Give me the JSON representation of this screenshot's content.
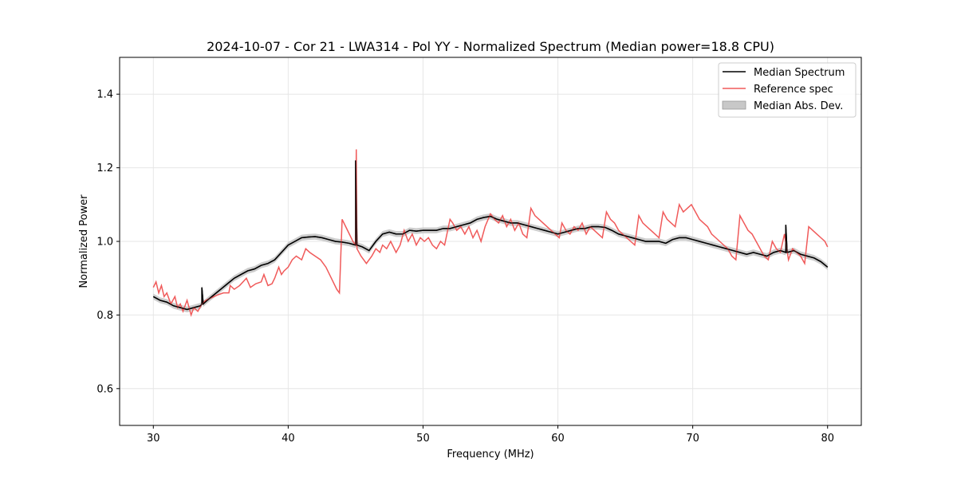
{
  "chart_data": {
    "type": "line",
    "title": "2024-10-07 - Cor 21 - LWA314 - Pol YY - Normalized Spectrum (Median power=18.8 CPU)",
    "xlabel": "Frequency (MHz)",
    "ylabel": "Normalized Power",
    "xlim": [
      27.5,
      82.5
    ],
    "ylim": [
      0.5,
      1.5
    ],
    "xticks": [
      30,
      40,
      50,
      60,
      70,
      80
    ],
    "yticks": [
      0.6,
      0.8,
      1.0,
      1.2,
      1.4
    ],
    "xtick_labels": [
      "30",
      "40",
      "50",
      "60",
      "70",
      "80"
    ],
    "ytick_labels": [
      "0.6",
      "0.8",
      "1.0",
      "1.2",
      "1.4"
    ],
    "grid": true,
    "legend_position": "top-right",
    "legend": [
      {
        "label": "Median Spectrum",
        "kind": "line",
        "color": "#000000"
      },
      {
        "label": "Reference spec",
        "kind": "line",
        "color": "#f05a5a"
      },
      {
        "label": "Median Abs. Dev.",
        "kind": "patch",
        "color": "#c8c8c8"
      }
    ],
    "series": [
      {
        "name": "Median Spectrum",
        "color": "#000000",
        "x": [
          30.0,
          30.5,
          31.0,
          31.5,
          32.0,
          32.5,
          33.0,
          33.5,
          33.6,
          33.6,
          33.7,
          34.0,
          34.5,
          35.0,
          35.5,
          36.0,
          36.5,
          37.0,
          37.5,
          38.0,
          38.5,
          39.0,
          39.5,
          40.0,
          40.5,
          41.0,
          41.5,
          42.0,
          42.5,
          43.0,
          43.5,
          44.0,
          44.5,
          45.0,
          45.0,
          45.1,
          45.5,
          46.0,
          46.5,
          47.0,
          47.5,
          48.0,
          48.5,
          49.0,
          49.5,
          50.0,
          50.5,
          51.0,
          51.5,
          52.0,
          52.5,
          53.0,
          53.5,
          54.0,
          54.5,
          55.0,
          55.5,
          56.0,
          56.5,
          57.0,
          57.5,
          58.0,
          58.5,
          59.0,
          59.5,
          60.0,
          60.5,
          61.0,
          61.5,
          62.0,
          62.5,
          63.0,
          63.5,
          64.0,
          64.5,
          65.0,
          65.5,
          66.0,
          66.5,
          67.0,
          67.5,
          68.0,
          68.5,
          69.0,
          69.5,
          70.0,
          70.5,
          71.0,
          71.5,
          72.0,
          72.5,
          73.0,
          73.5,
          74.0,
          74.5,
          75.0,
          75.5,
          76.0,
          76.5,
          76.9,
          76.9,
          77.0,
          77.5,
          78.0,
          78.5,
          79.0,
          79.5,
          80.0
        ],
        "y": [
          0.85,
          0.84,
          0.835,
          0.825,
          0.82,
          0.815,
          0.82,
          0.825,
          0.83,
          0.875,
          0.83,
          0.84,
          0.855,
          0.87,
          0.885,
          0.9,
          0.91,
          0.92,
          0.925,
          0.935,
          0.94,
          0.95,
          0.97,
          0.99,
          1.0,
          1.01,
          1.012,
          1.013,
          1.01,
          1.005,
          1.0,
          0.998,
          0.995,
          0.99,
          1.22,
          0.99,
          0.985,
          0.975,
          1.0,
          1.02,
          1.025,
          1.02,
          1.02,
          1.03,
          1.028,
          1.03,
          1.03,
          1.03,
          1.035,
          1.035,
          1.04,
          1.045,
          1.05,
          1.06,
          1.065,
          1.068,
          1.06,
          1.055,
          1.05,
          1.05,
          1.045,
          1.04,
          1.035,
          1.03,
          1.025,
          1.02,
          1.025,
          1.03,
          1.035,
          1.035,
          1.04,
          1.04,
          1.038,
          1.03,
          1.02,
          1.015,
          1.01,
          1.005,
          1.0,
          1.0,
          1.0,
          0.995,
          1.005,
          1.01,
          1.01,
          1.005,
          1.0,
          0.995,
          0.99,
          0.985,
          0.98,
          0.975,
          0.97,
          0.965,
          0.97,
          0.965,
          0.96,
          0.97,
          0.975,
          0.97,
          1.045,
          0.97,
          0.975,
          0.965,
          0.96,
          0.955,
          0.945,
          0.93
        ]
      },
      {
        "name": "Reference spec",
        "color": "#f05a5a",
        "x": [
          30.0,
          30.2,
          30.4,
          30.6,
          30.8,
          31.0,
          31.3,
          31.6,
          31.8,
          32.0,
          32.2,
          32.5,
          32.8,
          33.0,
          33.3,
          33.6,
          33.9,
          34.2,
          34.5,
          34.8,
          35.2,
          35.6,
          35.7,
          36.0,
          36.4,
          36.9,
          37.2,
          37.6,
          38.0,
          38.2,
          38.5,
          38.8,
          39.0,
          39.3,
          39.5,
          39.7,
          40.0,
          40.3,
          40.6,
          41.0,
          41.3,
          41.6,
          42.0,
          42.4,
          42.8,
          43.2,
          43.6,
          43.8,
          44.0,
          44.4,
          44.8,
          45.0,
          45.05,
          45.1,
          45.4,
          45.8,
          46.2,
          46.5,
          46.8,
          47.0,
          47.3,
          47.6,
          48.0,
          48.3,
          48.6,
          48.9,
          49.2,
          49.5,
          49.8,
          50.1,
          50.4,
          50.7,
          51.0,
          51.3,
          51.6,
          52.0,
          52.2,
          52.5,
          52.8,
          53.1,
          53.4,
          53.7,
          54.0,
          54.3,
          54.6,
          55.0,
          55.3,
          55.6,
          55.9,
          56.2,
          56.5,
          56.8,
          57.1,
          57.4,
          57.7,
          58.0,
          58.3,
          58.6,
          58.9,
          59.2,
          59.5,
          59.8,
          60.1,
          60.3,
          60.6,
          60.9,
          61.2,
          61.5,
          61.8,
          62.1,
          62.4,
          62.7,
          63.0,
          63.3,
          63.6,
          63.9,
          64.2,
          64.5,
          64.8,
          65.1,
          65.4,
          65.7,
          66.0,
          66.3,
          66.6,
          66.9,
          67.2,
          67.5,
          67.8,
          68.1,
          68.4,
          68.7,
          69.0,
          69.3,
          69.6,
          69.9,
          70.2,
          70.5,
          70.8,
          71.1,
          71.4,
          71.7,
          72.0,
          72.3,
          72.6,
          72.9,
          73.2,
          73.5,
          73.8,
          74.1,
          74.4,
          74.7,
          75.0,
          75.3,
          75.6,
          75.9,
          76.2,
          76.5,
          76.8,
          77.1,
          77.4,
          77.7,
          78.0,
          78.3,
          78.6,
          78.9,
          79.2,
          79.5,
          79.8,
          80.0
        ],
        "y": [
          0.875,
          0.89,
          0.86,
          0.88,
          0.85,
          0.86,
          0.83,
          0.85,
          0.82,
          0.83,
          0.81,
          0.84,
          0.8,
          0.82,
          0.81,
          0.83,
          0.84,
          0.845,
          0.85,
          0.855,
          0.86,
          0.86,
          0.88,
          0.87,
          0.88,
          0.9,
          0.875,
          0.885,
          0.89,
          0.91,
          0.88,
          0.885,
          0.9,
          0.93,
          0.91,
          0.92,
          0.93,
          0.95,
          0.96,
          0.95,
          0.98,
          0.97,
          0.96,
          0.95,
          0.93,
          0.9,
          0.87,
          0.86,
          1.06,
          1.03,
          1.0,
          0.99,
          1.25,
          0.98,
          0.96,
          0.94,
          0.96,
          0.98,
          0.97,
          0.99,
          0.98,
          1.0,
          0.97,
          0.99,
          1.03,
          1.0,
          1.02,
          0.99,
          1.01,
          1.0,
          1.01,
          0.99,
          0.98,
          1.0,
          0.99,
          1.06,
          1.05,
          1.03,
          1.04,
          1.02,
          1.04,
          1.01,
          1.03,
          1.0,
          1.04,
          1.075,
          1.06,
          1.05,
          1.07,
          1.04,
          1.06,
          1.03,
          1.05,
          1.02,
          1.01,
          1.09,
          1.07,
          1.06,
          1.05,
          1.04,
          1.03,
          1.02,
          1.01,
          1.05,
          1.03,
          1.02,
          1.04,
          1.03,
          1.05,
          1.02,
          1.04,
          1.03,
          1.02,
          1.01,
          1.08,
          1.06,
          1.05,
          1.03,
          1.02,
          1.01,
          1.0,
          0.99,
          1.07,
          1.05,
          1.04,
          1.03,
          1.02,
          1.01,
          1.08,
          1.06,
          1.05,
          1.04,
          1.1,
          1.08,
          1.09,
          1.1,
          1.08,
          1.06,
          1.05,
          1.04,
          1.02,
          1.01,
          1.0,
          0.99,
          0.98,
          0.96,
          0.95,
          1.07,
          1.05,
          1.03,
          1.02,
          1.0,
          0.98,
          0.96,
          0.95,
          1.0,
          0.98,
          0.97,
          1.02,
          0.95,
          0.98,
          0.97,
          0.96,
          0.94,
          1.04,
          1.03,
          1.02,
          1.01,
          1.0,
          0.985
        ]
      }
    ],
    "mad_band": {
      "name": "Median Abs. Dev.",
      "color": "#c8c8c8",
      "half_width": 0.008
    }
  }
}
